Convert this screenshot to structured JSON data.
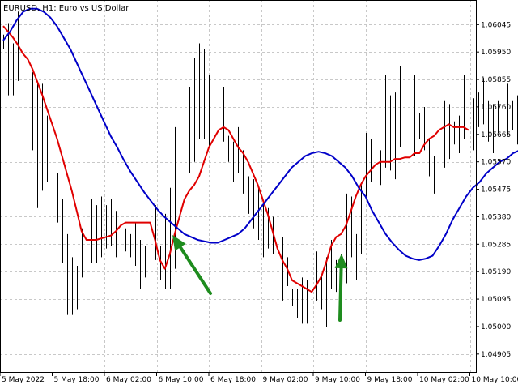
{
  "window": {
    "symbol_label": "EURUSD, H1:  Euro vs US Dollar"
  },
  "colors": {
    "background": "#ffffff",
    "grid": "#c8c8c8",
    "bars": "#000000",
    "fast_ma": "#e00000",
    "slow_ma": "#0000c8",
    "arrows": "#1e8c1e"
  },
  "chart_data": {
    "type": "line",
    "ylim": [
      1.0484,
      1.0613
    ],
    "y_ticks": [
      "1.06045",
      "1.05950",
      "1.05855",
      "1.05760",
      "1.05665",
      "1.05570",
      "1.05475",
      "1.05380",
      "1.05285",
      "1.05190",
      "1.05095",
      "1.05000",
      "1.04905"
    ],
    "x_ticks": [
      "5 May 2022",
      "5 May 18:00",
      "6 May 02:00",
      "6 May 10:00",
      "6 May 18:00",
      "9 May 02:00",
      "9 May 10:00",
      "9 May 18:00",
      "10 May 02:00",
      "10 May 10:00"
    ],
    "bars_high": [
      1.0601,
      1.0605,
      1.0598,
      1.0609,
      1.0607,
      1.0605,
      1.0588,
      1.0585,
      1.0584,
      1.0573,
      1.0556,
      1.0553,
      1.0544,
      1.0532,
      1.0524,
      1.0521,
      1.0534,
      1.0541,
      1.0544,
      1.0542,
      1.0545,
      1.0542,
      1.0544,
      1.054,
      1.0537,
      1.0534,
      1.0532,
      1.0536,
      1.053,
      1.0528,
      1.0535,
      1.0542,
      1.0528,
      1.0539,
      1.0548,
      1.0569,
      1.0581,
      1.0603,
      1.0583,
      1.0593,
      1.0598,
      1.0596,
      1.0587,
      1.0576,
      1.0578,
      1.0583,
      1.0566,
      1.0564,
      1.0569,
      1.0561,
      1.0552,
      1.0551,
      1.0548,
      1.0543,
      1.0541,
      1.0538,
      1.0531,
      1.0531,
      1.0524,
      1.0513,
      1.0513,
      1.0517,
      1.0516,
      1.0522,
      1.0526,
      1.0518,
      1.0524,
      1.053,
      1.0523,
      1.0525,
      1.0546,
      1.0545,
      1.0532,
      1.0549,
      1.0567,
      1.0565,
      1.057,
      1.0561,
      1.0587,
      1.058,
      1.0581,
      1.059,
      1.058,
      1.0578,
      1.0587,
      1.0574,
      1.0576,
      1.0565,
      1.0559,
      1.0566,
      1.0578,
      1.0577,
      1.0571,
      1.0573,
      1.0587,
      1.0581,
      1.0579,
      1.0581,
      1.0586,
      1.0578,
      1.0577,
      1.0578,
      1.0576,
      1.0584,
      1.0578,
      1.058,
      1.0577
    ],
    "bars_low": [
      1.0596,
      1.058,
      1.058,
      1.0585,
      1.0593,
      1.0583,
      1.0561,
      1.0541,
      1.0547,
      1.055,
      1.0539,
      1.0536,
      1.0522,
      1.0504,
      1.0504,
      1.0506,
      1.0517,
      1.0516,
      1.0522,
      1.0522,
      1.0524,
      1.0527,
      1.0528,
      1.0524,
      1.0529,
      1.0526,
      1.0524,
      1.0521,
      1.0513,
      1.0517,
      1.052,
      1.0523,
      1.0516,
      1.0513,
      1.0513,
      1.052,
      1.0523,
      1.0552,
      1.0553,
      1.0557,
      1.0565,
      1.0565,
      1.0562,
      1.0558,
      1.0559,
      1.0564,
      1.0557,
      1.055,
      1.0553,
      1.0546,
      1.0539,
      1.0534,
      1.053,
      1.0524,
      1.0527,
      1.0525,
      1.0515,
      1.0509,
      1.0514,
      1.0507,
      1.0503,
      1.0501,
      1.0501,
      1.0498,
      1.0509,
      1.0506,
      1.05,
      1.0513,
      1.0512,
      1.0514,
      1.0515,
      1.0524,
      1.0516,
      1.0525,
      1.0545,
      1.055,
      1.0546,
      1.0549,
      1.0555,
      1.0554,
      1.0551,
      1.0562,
      1.0563,
      1.056,
      1.0559,
      1.0565,
      1.0561,
      1.0552,
      1.0546,
      1.0548,
      1.0555,
      1.0558,
      1.0563,
      1.056,
      1.0565,
      1.0567,
      1.0561,
      1.0569,
      1.057,
      1.0564,
      1.056,
      1.0567,
      1.0569,
      1.0566,
      1.0568,
      1.0563,
      1.0565
    ],
    "series": [
      {
        "values": [
          1.0604,
          1.0602,
          1.06,
          1.05975,
          1.05945,
          1.05925,
          1.0589,
          1.05845,
          1.058,
          1.0575,
          1.057,
          1.0565,
          1.0559,
          1.0553,
          1.0547,
          1.054,
          1.0533,
          1.053,
          1.053,
          1.053,
          1.05305,
          1.0531,
          1.05315,
          1.0533,
          1.0535,
          1.0536,
          1.0536,
          1.0536,
          1.0536,
          1.0536,
          1.0536,
          1.053,
          1.0523,
          1.052,
          1.0525,
          1.0532,
          1.0538,
          1.0544,
          1.0547,
          1.0549,
          1.0552,
          1.0557,
          1.0562,
          1.0565,
          1.0568,
          1.0569,
          1.0568,
          1.0565,
          1.0562,
          1.056,
          1.0557,
          1.0553,
          1.0549,
          1.0544,
          1.0539,
          1.0533,
          1.0527,
          1.0523,
          1.052,
          1.0516,
          1.0515,
          1.0514,
          1.0513,
          1.0512,
          1.05145,
          1.05175,
          1.05225,
          1.0528,
          1.0531,
          1.0532,
          1.0535,
          1.054,
          1.0545,
          1.0549,
          1.0552,
          1.0554,
          1.0556,
          1.0557,
          1.0557,
          1.0557,
          1.0558,
          1.0558,
          1.05585,
          1.05585,
          1.056,
          1.056,
          1.0563,
          1.0565,
          1.0566,
          1.0568,
          1.0569,
          1.057,
          1.0569,
          1.0569,
          1.0569,
          1.0568
        ]
      },
      {
        "values": [
          1.0599,
          1.0602,
          1.0606,
          1.0609,
          1.061,
          1.061,
          1.0609,
          1.0607,
          1.0604,
          1.06,
          1.0596,
          1.0591,
          1.0586,
          1.0581,
          1.0576,
          1.0571,
          1.0566,
          1.0562,
          1.05575,
          1.05535,
          1.055,
          1.05465,
          1.05435,
          1.05405,
          1.0538,
          1.0536,
          1.0534,
          1.0532,
          1.0531,
          1.053,
          1.05295,
          1.0529,
          1.0529,
          1.053,
          1.0531,
          1.0532,
          1.0534,
          1.0537,
          1.054,
          1.0543,
          1.0546,
          1.0549,
          1.0552,
          1.0555,
          1.0557,
          1.0559,
          1.056,
          1.05605,
          1.056,
          1.0559,
          1.0557,
          1.0555,
          1.0552,
          1.0548,
          1.0545,
          1.054,
          1.0536,
          1.0532,
          1.0529,
          1.05265,
          1.05245,
          1.05235,
          1.0523,
          1.05235,
          1.05245,
          1.0528,
          1.0532,
          1.0537,
          1.0541,
          1.0545,
          1.0548,
          1.055,
          1.0553,
          1.0555,
          1.0557,
          1.0558,
          1.056,
          1.0561,
          1.0562
        ]
      }
    ]
  },
  "annotations": {
    "arrows": [
      {
        "name": "arrow-left",
        "from_bar": 39,
        "tip_value": 1.05295
      },
      {
        "name": "arrow-right",
        "from_bar": 80,
        "tip_value": 1.05215
      }
    ]
  }
}
